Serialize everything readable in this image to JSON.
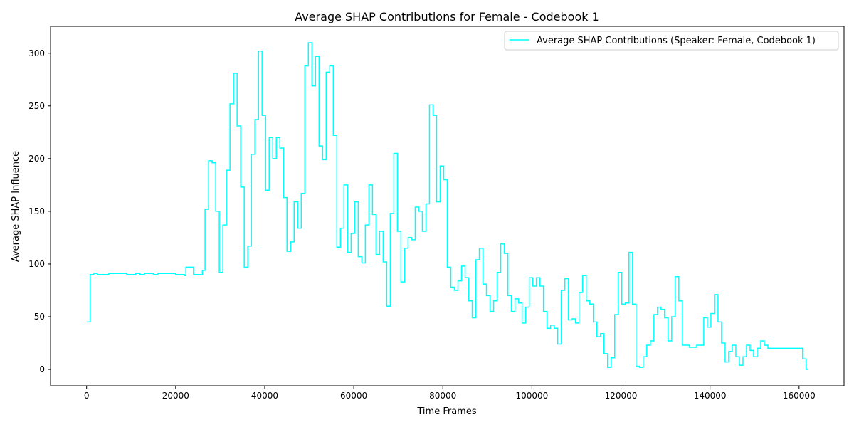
{
  "chart_data": {
    "type": "line",
    "title": "Average SHAP Contributions for Female - Codebook 1",
    "xlabel": "Time Frames",
    "ylabel": "Average SHAP Influence",
    "xlim": [
      -8100,
      170100
    ],
    "ylim": [
      -15.5,
      325.5
    ],
    "xticks": [
      0,
      20000,
      40000,
      60000,
      80000,
      100000,
      120000,
      140000,
      160000
    ],
    "yticks": [
      0,
      50,
      100,
      150,
      200,
      250,
      300
    ],
    "grid": false,
    "legend_position": "upper right",
    "series": [
      {
        "name": "Average SHAP Contributions (Speaker: Female, Codebook 1)",
        "color": "#00ffff",
        "drawstyle": "steps-post",
        "x": [
          0,
          800,
          1600,
          2400,
          3200,
          4000,
          5000,
          6000,
          7000,
          8000,
          9000,
          10000,
          11000,
          12000,
          12500,
          13000,
          14000,
          15000,
          16000,
          17000,
          18000,
          19000,
          20000,
          21000,
          22000,
          22300,
          23000,
          24000,
          25000,
          26000,
          26600,
          27400,
          28200,
          29000,
          29800,
          30600,
          31400,
          32200,
          33000,
          33800,
          34600,
          35400,
          36200,
          37000,
          37800,
          38600,
          39400,
          40200,
          41000,
          41800,
          42600,
          43400,
          44200,
          45000,
          45800,
          46600,
          47400,
          48200,
          49000,
          49800,
          50600,
          51400,
          52200,
          53000,
          53800,
          54600,
          55400,
          56200,
          57000,
          57800,
          58600,
          59400,
          60200,
          61000,
          61800,
          62600,
          63400,
          64200,
          65000,
          65800,
          66600,
          67400,
          68200,
          69000,
          69800,
          70600,
          71400,
          72200,
          73000,
          73800,
          74600,
          75400,
          76200,
          77000,
          77800,
          78600,
          79400,
          80200,
          81000,
          81800,
          82600,
          83400,
          84200,
          85000,
          85800,
          86600,
          87400,
          88200,
          89000,
          89800,
          90600,
          91400,
          92200,
          93000,
          93800,
          94600,
          95400,
          96200,
          97000,
          97800,
          98600,
          99400,
          100200,
          101000,
          101800,
          102600,
          103400,
          104200,
          105000,
          105800,
          106600,
          107400,
          108200,
          109000,
          109800,
          110600,
          111400,
          112200,
          113000,
          113800,
          114600,
          115400,
          116200,
          117000,
          117800,
          118600,
          119400,
          120200,
          121000,
          121800,
          122600,
          123400,
          124200,
          125000,
          125800,
          126600,
          127400,
          128200,
          129000,
          129800,
          130600,
          131400,
          132200,
          133000,
          133800,
          134600,
          135400,
          136200,
          137000,
          137800,
          138600,
          139400,
          140200,
          141000,
          141800,
          142600,
          143400,
          144200,
          145000,
          145800,
          146600,
          147400,
          148200,
          149000,
          149800,
          150600,
          151400,
          152200,
          153000,
          160000,
          160800,
          161600,
          162000
        ],
        "y": [
          45,
          90,
          91,
          90,
          90,
          90,
          91,
          91,
          91,
          91,
          90,
          90,
          91,
          90,
          90,
          91,
          91,
          90,
          91,
          91,
          91,
          91,
          90,
          90,
          89,
          97,
          97,
          90,
          90,
          94,
          152,
          198,
          196,
          150,
          92,
          137,
          189,
          252,
          281,
          231,
          173,
          97,
          117,
          204,
          237,
          302,
          241,
          170,
          220,
          200,
          220,
          210,
          163,
          112,
          121,
          159,
          134,
          167,
          288,
          310,
          269,
          297,
          212,
          199,
          282,
          288,
          222,
          116,
          134,
          175,
          111,
          129,
          159,
          107,
          101,
          137,
          175,
          147,
          109,
          131,
          102,
          60,
          148,
          205,
          131,
          83,
          115,
          125,
          123,
          154,
          150,
          131,
          157,
          251,
          241,
          159,
          193,
          180,
          97,
          78,
          75,
          84,
          98,
          87,
          65,
          49,
          104,
          115,
          81,
          70,
          55,
          65,
          92,
          119,
          110,
          70,
          55,
          67,
          63,
          44,
          59,
          87,
          79,
          87,
          79,
          55,
          39,
          42,
          39,
          24,
          75,
          86,
          47,
          48,
          44,
          73,
          89,
          65,
          62,
          45,
          31,
          34,
          15,
          2,
          11,
          52,
          92,
          62,
          63,
          111,
          62,
          3,
          2,
          12,
          23,
          27,
          52,
          59,
          57,
          49,
          27,
          50,
          88,
          65,
          23,
          23,
          21,
          21,
          23,
          23,
          49,
          40,
          53,
          71,
          45,
          25,
          7,
          17,
          23,
          12,
          4,
          12,
          23,
          18,
          12,
          20,
          27,
          23,
          20,
          20,
          10,
          0,
          0
        ]
      }
    ]
  }
}
